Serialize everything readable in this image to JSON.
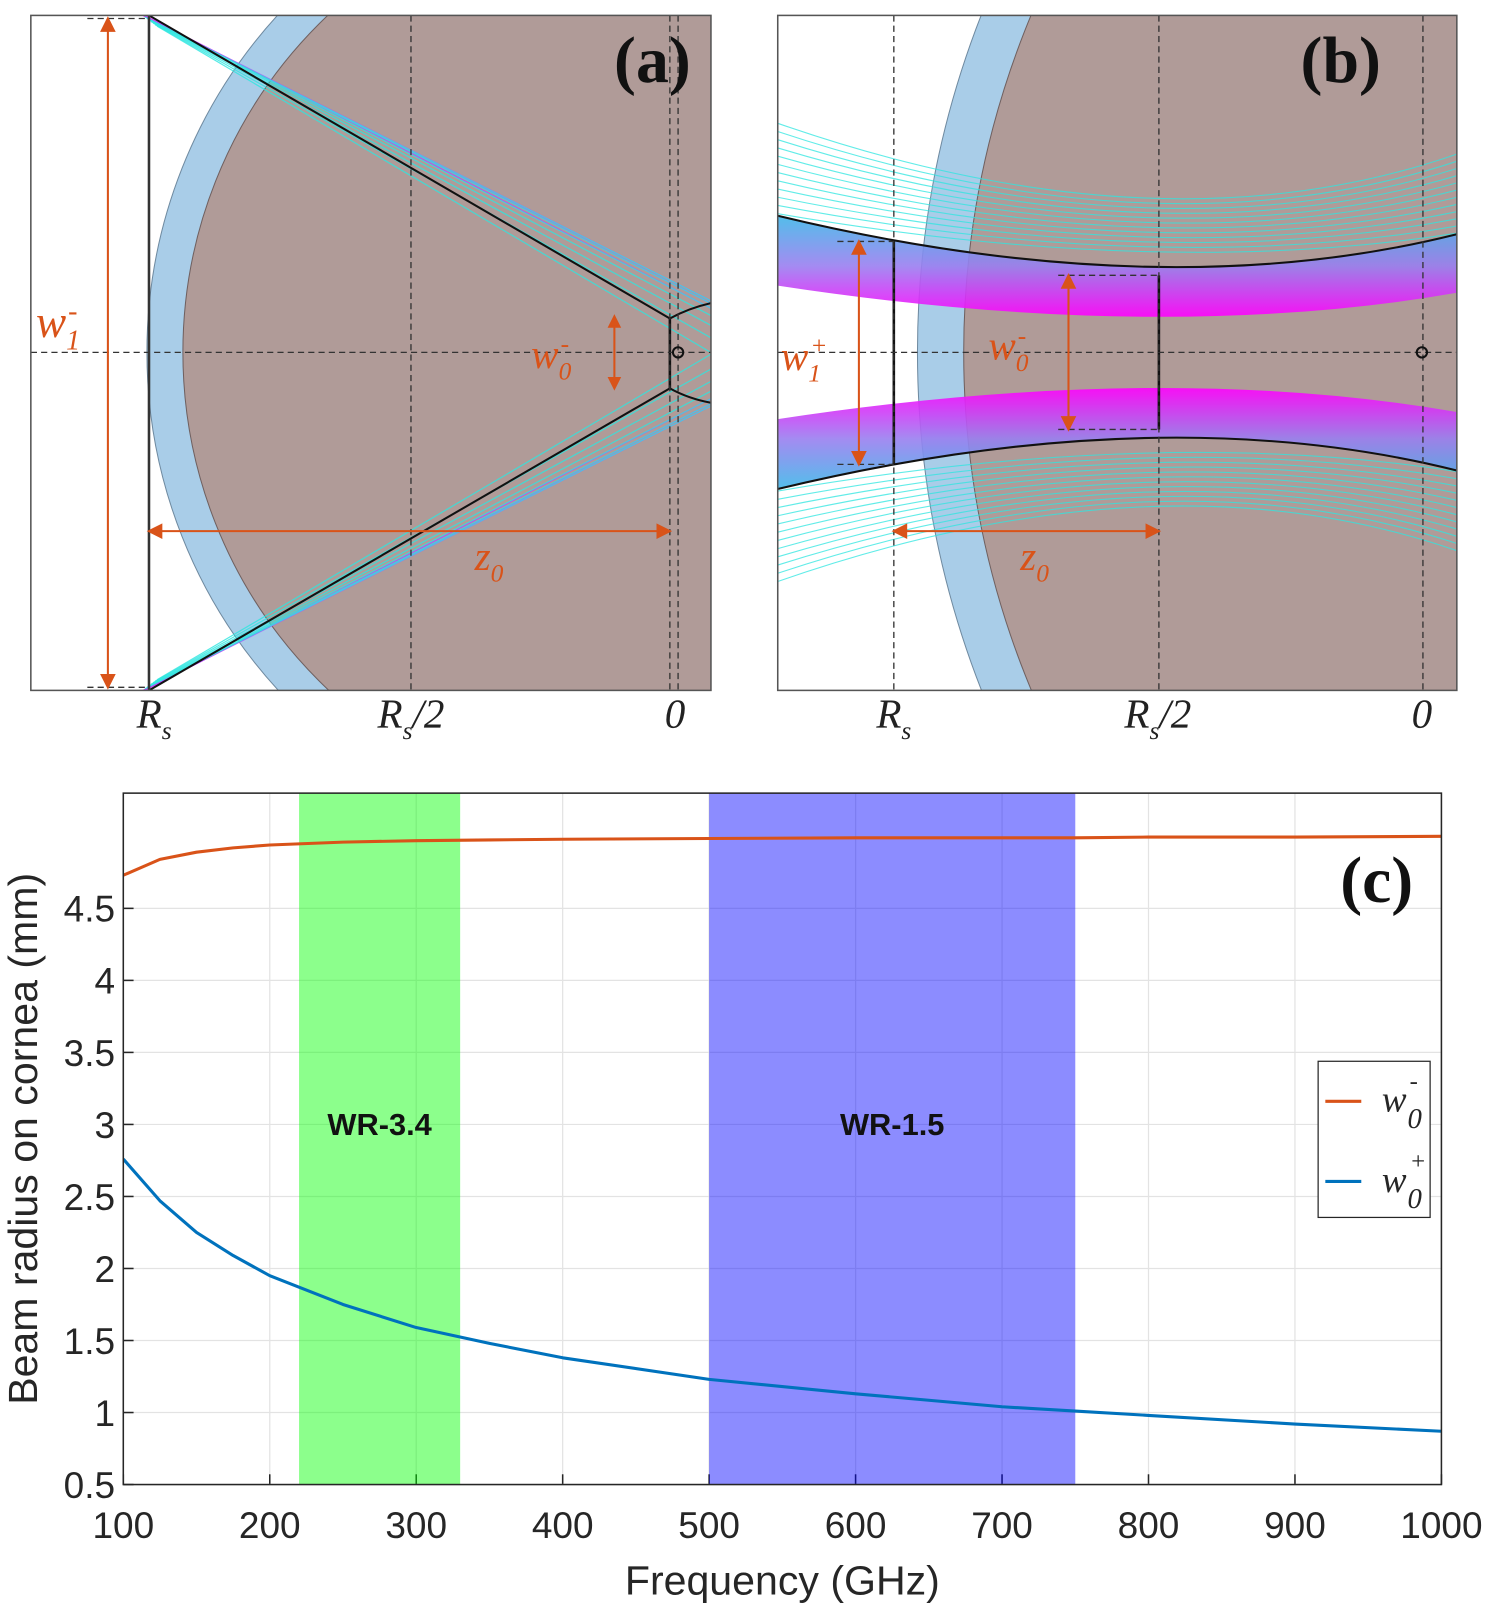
{
  "diagrams": [
    {
      "label": "(a)",
      "x_labels": [
        {
          "text": "R",
          "sub": "s"
        },
        {
          "text": "R",
          "sub": "s",
          "after": "/2"
        },
        {
          "text": "0"
        }
      ],
      "annotations": [
        {
          "text": "w",
          "sub": "1",
          "sup": "-"
        },
        {
          "text": "w",
          "sub": "0",
          "sup": "-"
        },
        {
          "text": "z",
          "sub": "0"
        }
      ]
    },
    {
      "label": "(b)",
      "x_labels": [
        {
          "text": "R",
          "sub": "s"
        },
        {
          "text": "R",
          "sub": "s",
          "after": "/2"
        },
        {
          "text": "0"
        }
      ],
      "annotations": [
        {
          "text": "w",
          "sub": "1",
          "sup": "+"
        },
        {
          "text": "w",
          "sub": "0",
          "sup": "-"
        },
        {
          "text": "z",
          "sub": "0"
        }
      ]
    }
  ],
  "chart_data": {
    "type": "line",
    "label": "(c)",
    "xlabel": "Frequency (GHz)",
    "ylabel": "Beam radius on cornea (mm)",
    "x": [
      100,
      125,
      150,
      175,
      200,
      250,
      300,
      350,
      400,
      500,
      600,
      700,
      750,
      800,
      900,
      1000
    ],
    "series": [
      {
        "name": "w",
        "name_sub": "0",
        "name_sup": "-",
        "color": "#d95319",
        "values": [
          4.73,
          4.84,
          4.89,
          4.92,
          4.94,
          4.96,
          4.97,
          4.975,
          4.98,
          4.985,
          4.99,
          4.99,
          4.99,
          4.995,
          4.995,
          5.0
        ]
      },
      {
        "name": "w",
        "name_sub": "0",
        "name_sup": "+",
        "color": "#0072bd",
        "values": [
          2.76,
          2.47,
          2.25,
          2.09,
          1.95,
          1.75,
          1.59,
          1.48,
          1.38,
          1.23,
          1.13,
          1.04,
          1.01,
          0.98,
          0.92,
          0.87
        ]
      }
    ],
    "bands": [
      {
        "label": "WR-3.4",
        "range": [
          220,
          330
        ],
        "color": "#00ff00"
      },
      {
        "label": "WR-1.5",
        "range": [
          500,
          750
        ],
        "color": "#0000ff"
      }
    ],
    "xlim": [
      100,
      1000
    ],
    "ylim": [
      0.5,
      5.3
    ],
    "xticks": [
      100,
      200,
      300,
      400,
      500,
      600,
      700,
      800,
      900,
      1000
    ],
    "yticks": [
      0.5,
      1,
      1.5,
      2,
      2.5,
      3,
      3.5,
      4,
      4.5
    ],
    "grid": true,
    "legend": "right"
  }
}
